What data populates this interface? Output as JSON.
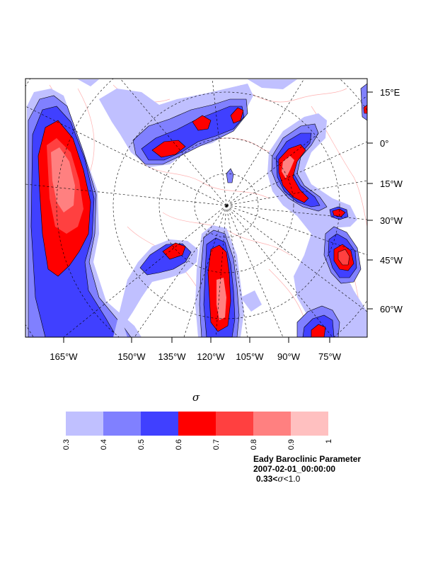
{
  "map": {
    "longitude_labels": [
      "165°W",
      "150°W",
      "135°W",
      "120°W",
      "105°W",
      "90°W",
      "75°W"
    ],
    "latitude_labels": [
      "15°E",
      "0°",
      "15°W",
      "30°W",
      "45°W",
      "60°W"
    ]
  },
  "colorbar": {
    "symbol": "σ",
    "ticks": [
      "0.3",
      "0.4",
      "0.5",
      "0.6",
      "0.7",
      "0.8",
      "0.9",
      "1"
    ],
    "colors": [
      "#c0c0ff",
      "#8080ff",
      "#4040ff",
      "#ff0000",
      "#ff4040",
      "#ff8080",
      "#ffc0c0"
    ]
  },
  "info": {
    "title": "Eady Baroclinic Parameter",
    "datetime": "2007-02-01_00:00:00",
    "range_low": "0.33<",
    "range_symbol": "σ",
    "range_high": "<1.0"
  }
}
